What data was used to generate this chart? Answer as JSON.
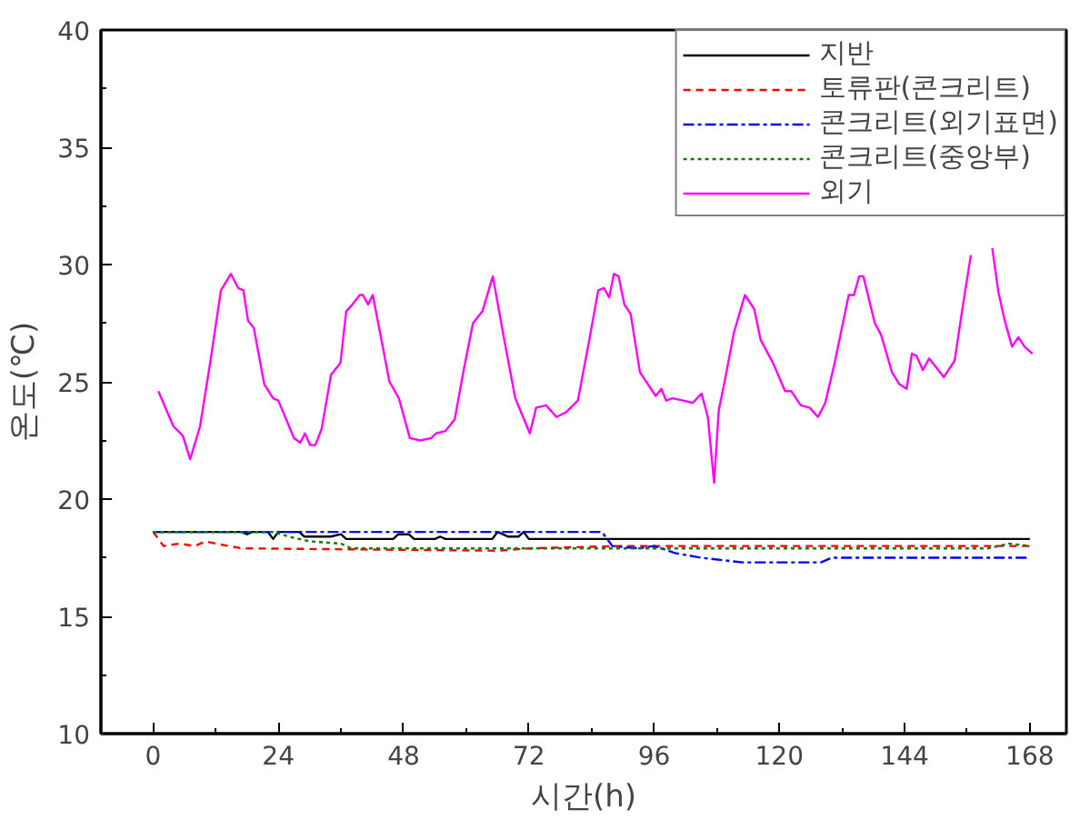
{
  "chart_data": {
    "type": "line",
    "xlabel": "시간(h)",
    "ylabel": "온도(℃)",
    "xlim": [
      -10,
      175
    ],
    "ylim": [
      10,
      40
    ],
    "xticks": [
      0,
      24,
      48,
      72,
      96,
      120,
      144,
      168
    ],
    "yticks": [
      10,
      15,
      20,
      25,
      30,
      35,
      40
    ],
    "grid": false,
    "legend": "top right",
    "marker": "none",
    "series": [
      {
        "name": "지반",
        "color": "#000000",
        "line_style": "solid",
        "x": [
          0,
          17,
          18,
          19,
          22,
          23,
          24,
          25,
          28,
          29,
          30,
          34,
          36,
          37,
          46,
          47,
          49,
          50,
          54,
          55,
          56,
          57,
          65,
          66,
          67,
          68,
          70,
          71,
          72,
          168
        ],
        "values": [
          18.6,
          18.6,
          18.5,
          18.6,
          18.6,
          18.3,
          18.6,
          18.6,
          18.6,
          18.4,
          18.4,
          18.4,
          18.5,
          18.3,
          18.3,
          18.5,
          18.5,
          18.3,
          18.3,
          18.4,
          18.3,
          18.3,
          18.3,
          18.6,
          18.5,
          18.4,
          18.4,
          18.6,
          18.3,
          18.3
        ]
      },
      {
        "name": "토류판(콘크리트)",
        "color": "#ff0000",
        "line_style": "dashed",
        "x": [
          0,
          2,
          5,
          8,
          10,
          12,
          17,
          66,
          72,
          90,
          168
        ],
        "values": [
          18.6,
          18.0,
          18.1,
          18.0,
          18.2,
          18.1,
          17.9,
          17.8,
          17.9,
          18.0,
          18.0
        ]
      },
      {
        "name": "콘크리트(외기표면)",
        "color": "#0000ff",
        "line_style": "dashdot",
        "x": [
          0,
          86,
          88,
          93,
          96,
          100,
          105,
          113,
          128,
          130,
          168
        ],
        "values": [
          18.6,
          18.6,
          18.0,
          17.9,
          18.0,
          17.7,
          17.5,
          17.3,
          17.3,
          17.5,
          17.5
        ]
      },
      {
        "name": "콘크리트(중앙부)",
        "color": "#008000",
        "line_style": "dotted",
        "x": [
          0,
          23,
          26,
          30,
          36,
          38,
          160,
          164,
          168
        ],
        "values": [
          18.6,
          18.6,
          18.4,
          18.2,
          18.1,
          17.9,
          17.9,
          18.1,
          18.0
        ]
      },
      {
        "name": "외기",
        "color": "#ff00ff",
        "line_style": "solid",
        "x": [
          1.0,
          3.9,
          5.7,
          7.1,
          9,
          11,
          13,
          14.9,
          16.3,
          17.3,
          18.2,
          19.3,
          21.3,
          23,
          24,
          27,
          28.2,
          29.1,
          30.1,
          31.1,
          32.3,
          34.1,
          35.9,
          37,
          38.2,
          39.6,
          40.2,
          41.2,
          42.1,
          45.3,
          47.1,
          49.2,
          51.2,
          53.3,
          54.2,
          56,
          57.8,
          59.6,
          61.3,
          63.1,
          65.1,
          67.2,
          69.4,
          72.2,
          73.4,
          75.3,
          77.3,
          79.1,
          81.4,
          83.6,
          85.3,
          86.4,
          87.4,
          88.3,
          89.2,
          90.3,
          91.5,
          93.3,
          96.3,
          97.4,
          98.3,
          99.5,
          101.6,
          103.4,
          105.1,
          106.3,
          107.5,
          108.4,
          109.6,
          111.3,
          113.4,
          115.2,
          116.4,
          118.8,
          121.1,
          122.3,
          124.1,
          125.8,
          127.4,
          128.8,
          130.6,
          133.3,
          134.3,
          135.3,
          136.1,
          138.3,
          139.5,
          141.6,
          143,
          144.4,
          145.4,
          146.3,
          147.5,
          148.7,
          150.1,
          151.5,
          153.6,
          155,
          156.7,
          158.5,
          160.8,
          162,
          163.2,
          164.6,
          165.8,
          167,
          168.5
        ],
        "values": [
          24.6,
          23.1,
          22.7,
          21.7,
          23.1,
          25.9,
          28.9,
          29.6,
          29.0,
          28.9,
          27.6,
          27.3,
          24.9,
          24.3,
          24.2,
          22.6,
          22.4,
          22.8,
          22.3,
          22.3,
          23.0,
          25.3,
          25.8,
          28.0,
          28.3,
          28.7,
          28.7,
          28.3,
          28.7,
          25.0,
          24.3,
          22.6,
          22.5,
          22.6,
          22.8,
          22.9,
          23.4,
          25.6,
          27.5,
          28.0,
          29.5,
          26.9,
          24.3,
          22.8,
          23.9,
          24.0,
          23.5,
          23.7,
          24.2,
          26.8,
          28.9,
          29.0,
          28.6,
          29.6,
          29.5,
          28.3,
          27.9,
          25.4,
          24.4,
          24.7,
          24.2,
          24.3,
          24.2,
          24.1,
          24.5,
          23.5,
          20.7,
          23.8,
          25.1,
          27.1,
          28.7,
          28.1,
          26.8,
          25.8,
          24.6,
          24.6,
          24.0,
          23.9,
          23.5,
          24.1,
          25.8,
          28.7,
          28.7,
          29.5,
          29.5,
          27.5,
          27.0,
          25.4,
          24.9,
          24.7,
          26.2,
          26.1,
          25.5,
          26.0,
          25.6,
          25.2,
          25.9,
          28.0,
          30.4,
          null,
          30.7,
          28.8,
          27.6,
          26.5,
          26.9,
          26.5,
          26.2
        ]
      }
    ]
  }
}
